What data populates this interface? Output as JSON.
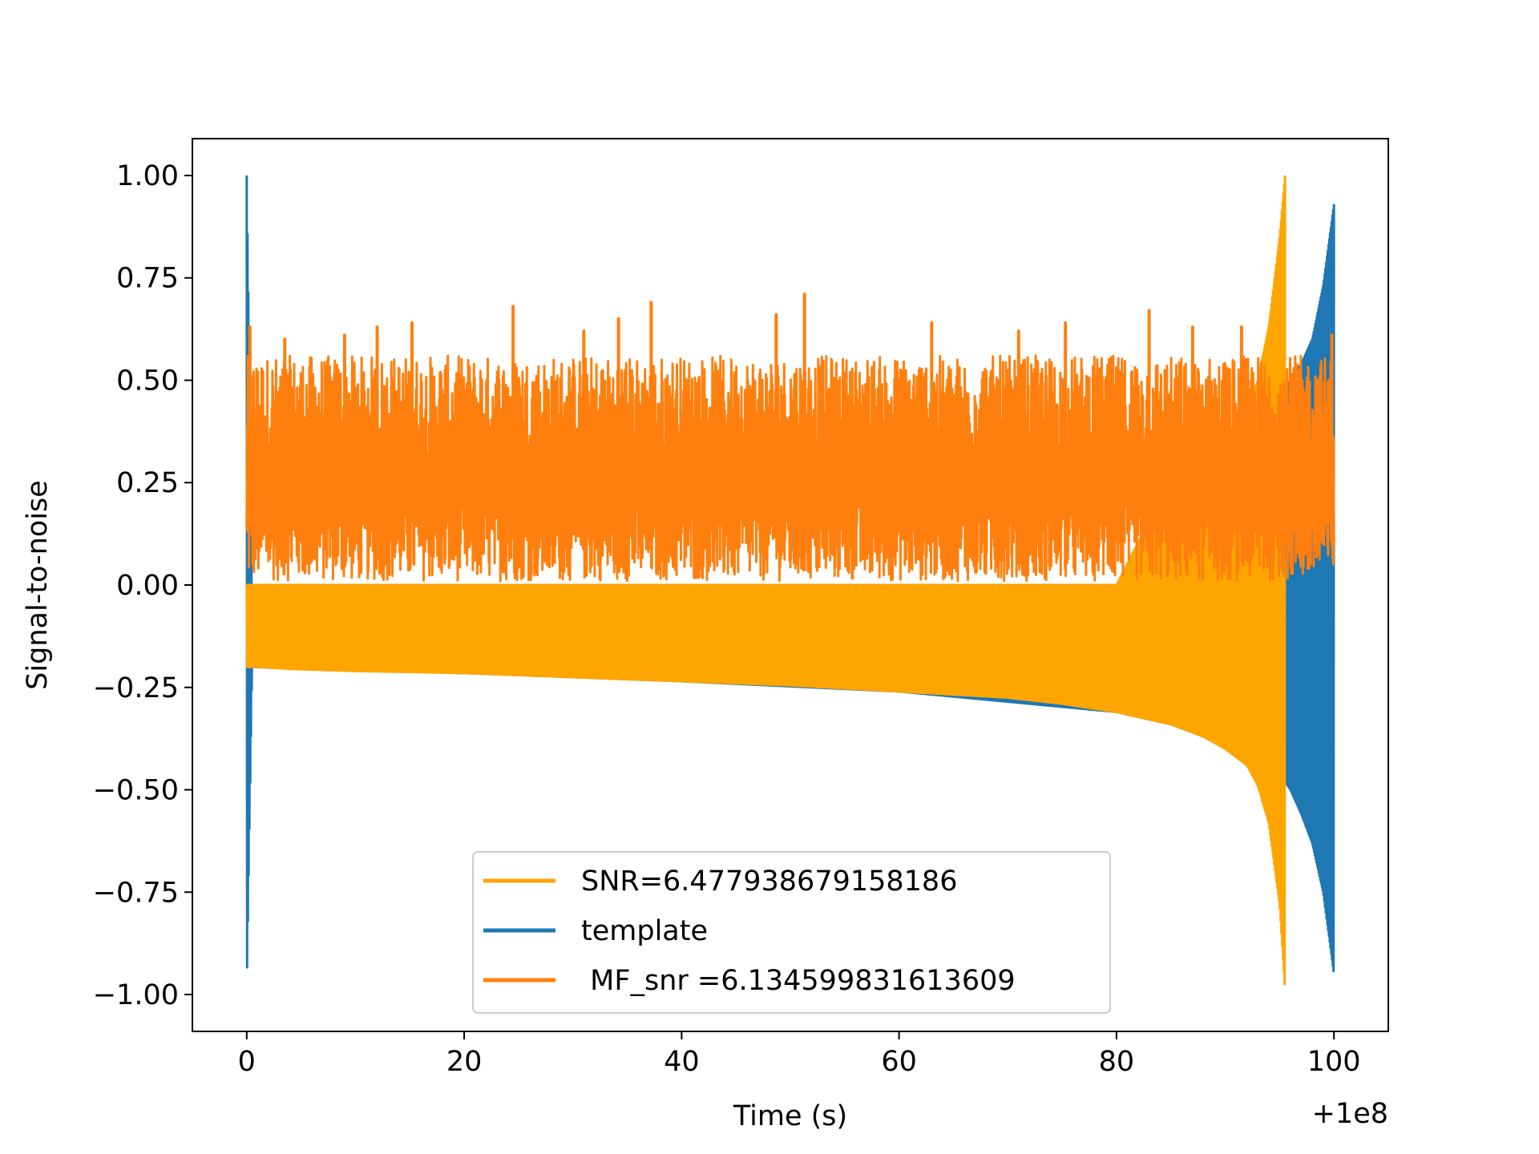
{
  "chart_data": {
    "type": "line",
    "title": "",
    "xlabel": "Time (s)",
    "ylabel": "Signal-to-noise",
    "x_offset_label": "+1e8",
    "xlim": [
      -5,
      105
    ],
    "ylim": [
      -1.09,
      1.09
    ],
    "x_ticks": [
      0,
      20,
      40,
      60,
      80,
      100
    ],
    "x_tick_labels": [
      "0",
      "20",
      "40",
      "60",
      "80",
      "100"
    ],
    "y_ticks": [
      1.0,
      0.75,
      0.5,
      0.25,
      0.0,
      -0.25,
      -0.5,
      -0.75,
      -1.0
    ],
    "y_tick_labels": [
      "1.00",
      "0.75",
      "0.50",
      "0.25",
      "0.00",
      "−0.25",
      "−0.50",
      "−0.75",
      "−1.00"
    ],
    "grid": false,
    "legend_position": "lower-center",
    "series": [
      {
        "name": "SNR=6.477938679158186",
        "color": "#ffa500",
        "description": "chirp",
        "x": [
          0,
          1,
          4,
          10,
          20,
          30,
          40,
          50,
          60,
          70,
          75,
          80,
          85,
          88,
          90,
          92,
          93,
          94,
          95,
          95.5
        ],
        "upper": [
          0.0,
          0.0,
          0.0,
          0.0,
          0.0,
          0.0,
          0.0,
          0.0,
          0.0,
          0.0,
          0.0,
          0.0,
          0.26,
          0.31,
          0.36,
          0.43,
          0.5,
          0.63,
          0.85,
          1.0
        ],
        "lower": [
          -0.2,
          -0.2,
          -0.205,
          -0.21,
          -0.215,
          -0.225,
          -0.235,
          -0.245,
          -0.26,
          -0.275,
          -0.29,
          -0.31,
          -0.34,
          -0.37,
          -0.4,
          -0.44,
          -0.49,
          -0.58,
          -0.78,
          -0.99
        ]
      },
      {
        "name": "template",
        "color": "#1f77b4",
        "description": "chirp",
        "x": [
          0,
          0.5,
          5,
          20,
          40,
          60,
          80,
          85,
          90,
          93,
          95,
          96,
          97,
          98,
          99,
          100
        ],
        "upper": [
          1.0,
          0.0,
          0.0,
          0.0,
          0.0,
          0.0,
          0.0,
          0.0,
          0.0,
          0.0,
          0.45,
          0.5,
          0.54,
          0.6,
          0.73,
          0.93
        ],
        "lower": [
          -0.99,
          -0.2,
          -0.205,
          -0.215,
          -0.235,
          -0.26,
          -0.31,
          -0.34,
          -0.39,
          -0.43,
          -0.46,
          -0.5,
          -0.56,
          -0.63,
          -0.75,
          -0.95
        ]
      },
      {
        "name": " MF_snr =6.134599831613609",
        "color": "#ff7f0e",
        "description": "noise",
        "x_range": [
          0,
          100
        ],
        "band": [
          0.01,
          0.56
        ],
        "peaks": [
          {
            "x": 0.3,
            "y": 0.63
          },
          {
            "x": 1.0,
            "y": 0.52
          },
          {
            "x": 3.5,
            "y": 0.6
          },
          {
            "x": 9.0,
            "y": 0.61
          },
          {
            "x": 12.0,
            "y": 0.63
          },
          {
            "x": 15.2,
            "y": 0.64
          },
          {
            "x": 24.5,
            "y": 0.68
          },
          {
            "x": 31.0,
            "y": 0.62
          },
          {
            "x": 34.2,
            "y": 0.65
          },
          {
            "x": 37.2,
            "y": 0.69
          },
          {
            "x": 48.7,
            "y": 0.66
          },
          {
            "x": 51.3,
            "y": 0.71
          },
          {
            "x": 63.0,
            "y": 0.64
          },
          {
            "x": 71.0,
            "y": 0.62
          },
          {
            "x": 75.3,
            "y": 0.64
          },
          {
            "x": 83.0,
            "y": 0.67
          },
          {
            "x": 87.0,
            "y": 0.63
          },
          {
            "x": 91.5,
            "y": 0.63
          },
          {
            "x": 99.8,
            "y": 0.61
          }
        ]
      }
    ]
  }
}
